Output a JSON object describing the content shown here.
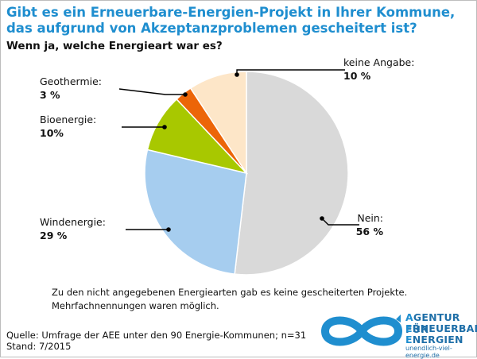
{
  "title": "Gibt es ein Erneuerbare-Energien-Projekt in Ihrer Kommune, das aufgrund von Akzeptanzproblemen gescheitert ist?",
  "subtitle": "Wenn ja, welche Energieart war es?",
  "note_lines": [
    "Zu den nicht angegebenen Energiearten gab es keine gescheiterten Projekte.",
    "Mehrfachnennungen waren möglich."
  ],
  "source_lines": [
    "Quelle: Umfrage der AEE unter den 90 Energie-Kommunen; n=31",
    "Stand: 7/2015"
  ],
  "logo": {
    "line1_first": "A",
    "line1_rest": "GENTUR FÜR",
    "line2_first": "E",
    "line2_rest": "RNEUERBARE",
    "line3_first": "E",
    "line3_rest": "NERGIEN",
    "url": "unendlich-viel-energie.de"
  },
  "colors": {
    "title": "#1f8ecf",
    "nein": "#d9d9d9",
    "windenergie": "#a6cdef",
    "bioenergie": "#a8c800",
    "geothermie": "#ec6508",
    "keine_angabe": "#fde6c8",
    "logo": "#1f8ecf"
  },
  "chart_data": {
    "type": "pie",
    "slices": [
      {
        "key": "nein",
        "label": "Nein:",
        "value": 56,
        "value_label": "56 %"
      },
      {
        "key": "windenergie",
        "label": "Windenergie:",
        "value": 29,
        "value_label": "29 %"
      },
      {
        "key": "bioenergie",
        "label": "Bioenergie:",
        "value": 10,
        "value_label": "10%"
      },
      {
        "key": "geothermie",
        "label": "Geothermie:",
        "value": 3,
        "value_label": "3 %"
      },
      {
        "key": "keine_angabe",
        "label": "keine Angabe:",
        "value": 10,
        "value_label": "10 %"
      }
    ],
    "start": "12 o'clock",
    "direction": "clockwise"
  }
}
